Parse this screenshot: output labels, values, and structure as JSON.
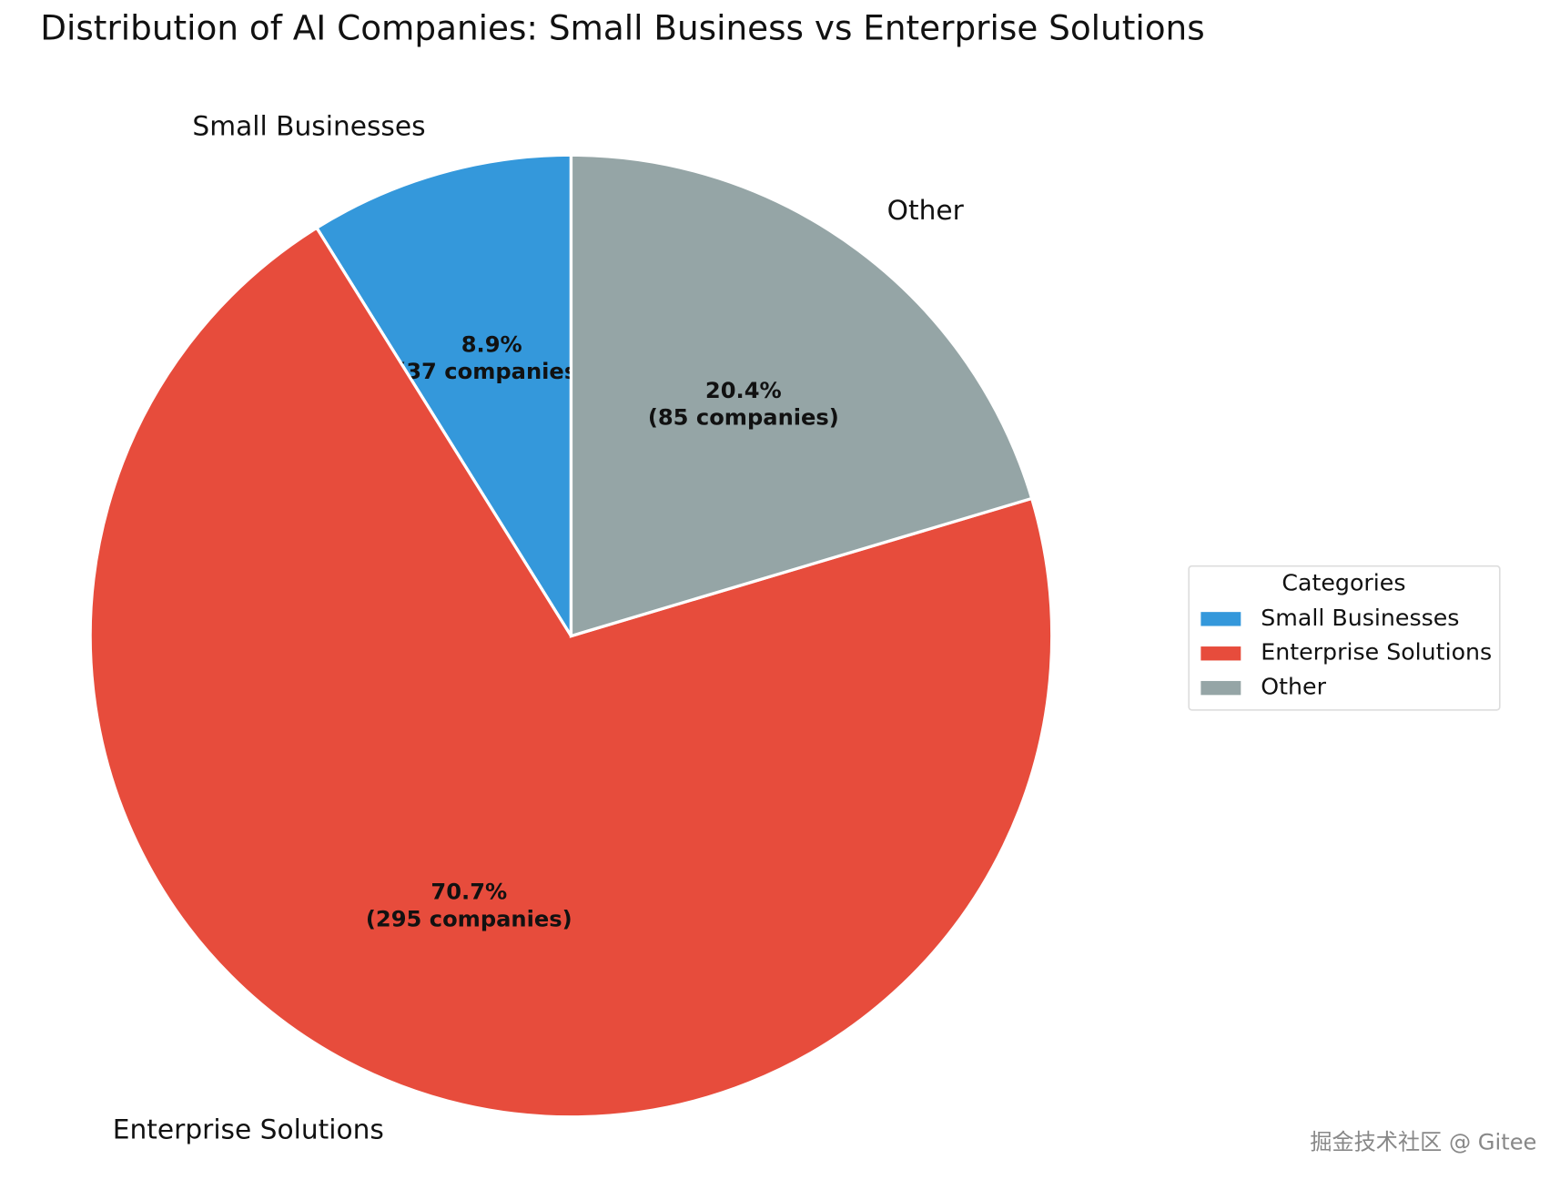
{
  "chart_data": {
    "type": "pie",
    "title": "Distribution of AI Companies: Small Business vs Enterprise Solutions",
    "categories": [
      "Small Businesses",
      "Enterprise Solutions",
      "Other"
    ],
    "values": [
      37,
      295,
      85
    ],
    "value_labels": [
      "(37 companies)",
      "(295 companies)",
      "(85 companies)"
    ],
    "percent_labels": [
      "8.9%",
      "70.7%",
      "20.4%"
    ],
    "colors": [
      "#3498db",
      "#e74c3c",
      "#95a5a6"
    ],
    "legend_title": "Categories",
    "legend": "center right",
    "watermark": "掘金技术社区 @ Gitee"
  }
}
